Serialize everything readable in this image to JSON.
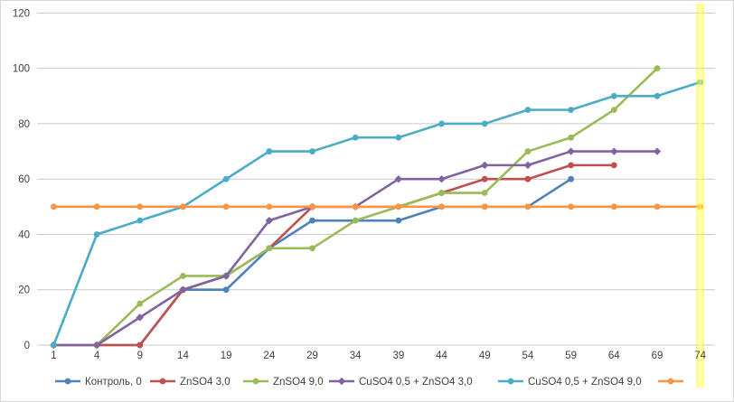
{
  "chart_data": {
    "type": "line",
    "title": "",
    "xlabel": "",
    "ylabel": "",
    "x_categories": [
      "1",
      "4",
      "9",
      "14",
      "19",
      "24",
      "29",
      "34",
      "39",
      "44",
      "49",
      "54",
      "59",
      "64",
      "69",
      "74"
    ],
    "y_ticks": [
      0,
      20,
      40,
      60,
      80,
      100,
      120
    ],
    "ylim": [
      0,
      120
    ],
    "grid": "horizontal-only",
    "legend_position": "bottom",
    "gridline_color": "#c9c9c9",
    "label_color": "#404040",
    "highlight_band": {
      "at_category": "74",
      "color": "#ffff00",
      "opacity": 0.45
    },
    "series": [
      {
        "name": "Контроль, 0",
        "slug": "kontrol",
        "color": "#4F81BD",
        "marker": "circle",
        "values": [
          0,
          0,
          0,
          20,
          20,
          35,
          45,
          45,
          45,
          50,
          50,
          50,
          60,
          null,
          null,
          null
        ]
      },
      {
        "name": "ZnSO4  3,0",
        "slug": "znso4-3",
        "color": "#C0504D",
        "marker": "circle",
        "values": [
          0,
          0,
          0,
          20,
          25,
          35,
          50,
          50,
          50,
          55,
          60,
          60,
          65,
          65,
          null,
          null
        ]
      },
      {
        "name": "ZnSO4  9,0",
        "slug": "znso4-9",
        "color": "#9BBB59",
        "marker": "circle",
        "values": [
          0,
          0,
          15,
          25,
          25,
          35,
          35,
          45,
          50,
          55,
          55,
          70,
          75,
          85,
          100,
          null
        ]
      },
      {
        "name": "CuSO4  0,5 + ZnSO4  3,0",
        "slug": "cuso4-znso4-3",
        "color": "#8064A2",
        "marker": "diamond",
        "values": [
          0,
          0,
          10,
          20,
          25,
          45,
          50,
          50,
          60,
          60,
          65,
          65,
          70,
          70,
          70,
          null
        ]
      },
      {
        "name": "CuSO4  0,5 + ZnSO4  9,0",
        "slug": "cuso4-znso4-9",
        "color": "#4BACC6",
        "marker": "circle",
        "values": [
          0,
          40,
          45,
          50,
          60,
          70,
          70,
          75,
          75,
          80,
          80,
          85,
          85,
          90,
          90,
          95
        ]
      },
      {
        "name": "",
        "slug": "threshold-50",
        "color": "#F79646",
        "marker": "circle",
        "values": [
          50,
          50,
          50,
          50,
          50,
          50,
          50,
          50,
          50,
          50,
          50,
          50,
          50,
          50,
          50,
          50
        ]
      }
    ]
  }
}
